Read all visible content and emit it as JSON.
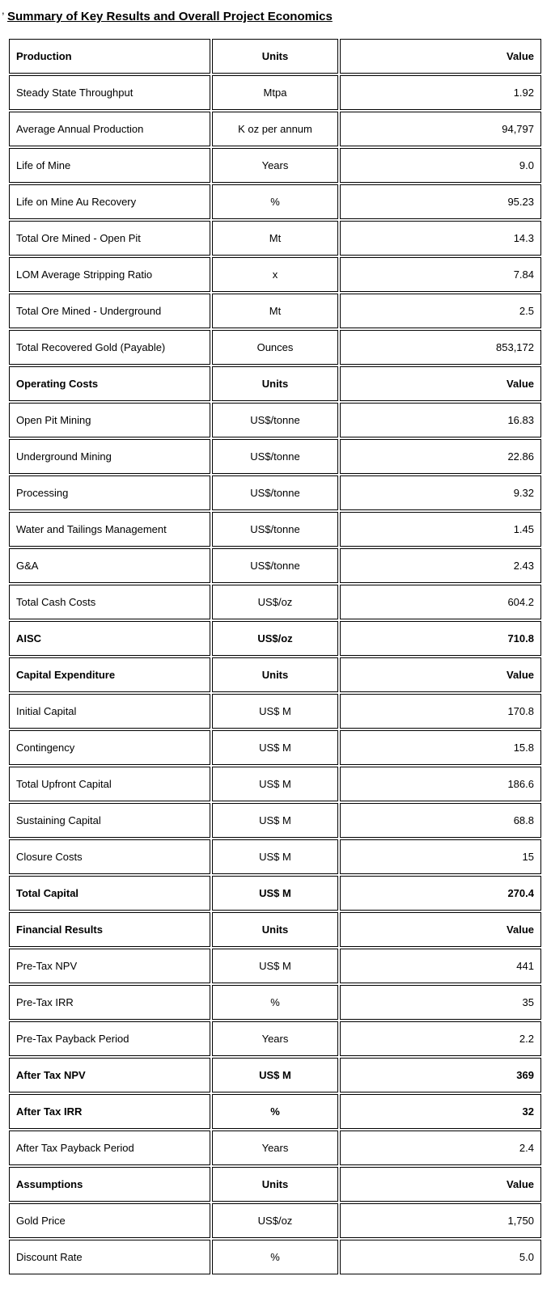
{
  "page": {
    "stray_mark": ",",
    "title": "Summary of Key Results and Overall Project Economics"
  },
  "table": {
    "rows": [
      {
        "label": "Production",
        "units": "Units",
        "value": "Value",
        "style": "section-header"
      },
      {
        "label": "Steady State Throughput",
        "units": "Mtpa",
        "value": "1.92",
        "style": "normal"
      },
      {
        "label": "Average Annual Production",
        "units": "K oz per annum",
        "value": "94,797",
        "style": "normal"
      },
      {
        "label": "Life of Mine",
        "units": "Years",
        "value": "9.0",
        "style": "normal"
      },
      {
        "label": "Life on Mine Au Recovery",
        "units": "%",
        "value": "95.23",
        "style": "normal"
      },
      {
        "label": "Total Ore Mined - Open Pit",
        "units": "Mt",
        "value": "14.3",
        "style": "normal"
      },
      {
        "label": "LOM Average Stripping Ratio",
        "units": "x",
        "value": "7.84",
        "style": "normal"
      },
      {
        "label": "Total Ore Mined - Underground",
        "units": "Mt",
        "value": "2.5",
        "style": "normal"
      },
      {
        "label": "Total Recovered Gold (Payable)",
        "units": "Ounces",
        "value": "853,172",
        "style": "normal"
      },
      {
        "label": "Operating Costs",
        "units": "Units",
        "value": "Value",
        "style": "section-header"
      },
      {
        "label": "Open Pit Mining",
        "units": "US$/tonne",
        "value": "16.83",
        "style": "normal"
      },
      {
        "label": "Underground Mining",
        "units": "US$/tonne",
        "value": "22.86",
        "style": "normal"
      },
      {
        "label": "Processing",
        "units": "US$/tonne",
        "value": "9.32",
        "style": "normal"
      },
      {
        "label": "Water and Tailings Management",
        "units": "US$/tonne",
        "value": "1.45",
        "style": "normal"
      },
      {
        "label": "G&A",
        "units": "US$/tonne",
        "value": "2.43",
        "style": "normal"
      },
      {
        "label": "Total Cash Costs",
        "units": "US$/oz",
        "value": "604.2",
        "style": "normal"
      },
      {
        "label": "AISC",
        "units": "US$/oz",
        "value": "710.8",
        "style": "bold"
      },
      {
        "label": "Capital Expenditure",
        "units": "Units",
        "value": "Value",
        "style": "section-header"
      },
      {
        "label": "Initial Capital",
        "units": "US$ M",
        "value": "170.8",
        "style": "normal"
      },
      {
        "label": "Contingency",
        "units": "US$ M",
        "value": "15.8",
        "style": "normal"
      },
      {
        "label": "Total Upfront Capital",
        "units": "US$ M",
        "value": "186.6",
        "style": "normal"
      },
      {
        "label": "Sustaining Capital",
        "units": "US$ M",
        "value": "68.8",
        "style": "normal"
      },
      {
        "label": "Closure Costs",
        "units": "US$ M",
        "value": "15",
        "style": "normal"
      },
      {
        "label": "Total Capital",
        "units": "US$ M",
        "value": "270.4",
        "style": "bold"
      },
      {
        "label": "Financial Results",
        "units": "Units",
        "value": "Value",
        "style": "section-header"
      },
      {
        "label": "Pre-Tax NPV",
        "units": "US$ M",
        "value": "441",
        "style": "normal"
      },
      {
        "label": "Pre-Tax IRR",
        "units": "%",
        "value": "35",
        "style": "normal"
      },
      {
        "label": "Pre-Tax Payback Period",
        "units": "Years",
        "value": "2.2",
        "style": "normal"
      },
      {
        "label": "After Tax NPV",
        "units": "US$ M",
        "value": "369",
        "style": "bold"
      },
      {
        "label": "After Tax IRR",
        "units": "%",
        "value": "32",
        "style": "bold"
      },
      {
        "label": "After Tax Payback Period",
        "units": "Years",
        "value": "2.4",
        "style": "normal"
      },
      {
        "label": "Assumptions",
        "units": "Units",
        "value": "Value",
        "style": "section-header"
      },
      {
        "label": "Gold Price",
        "units": "US$/oz",
        "value": "1,750",
        "style": "normal"
      },
      {
        "label": "Discount Rate",
        "units": "%",
        "value": "5.0",
        "style": "normal"
      }
    ]
  }
}
